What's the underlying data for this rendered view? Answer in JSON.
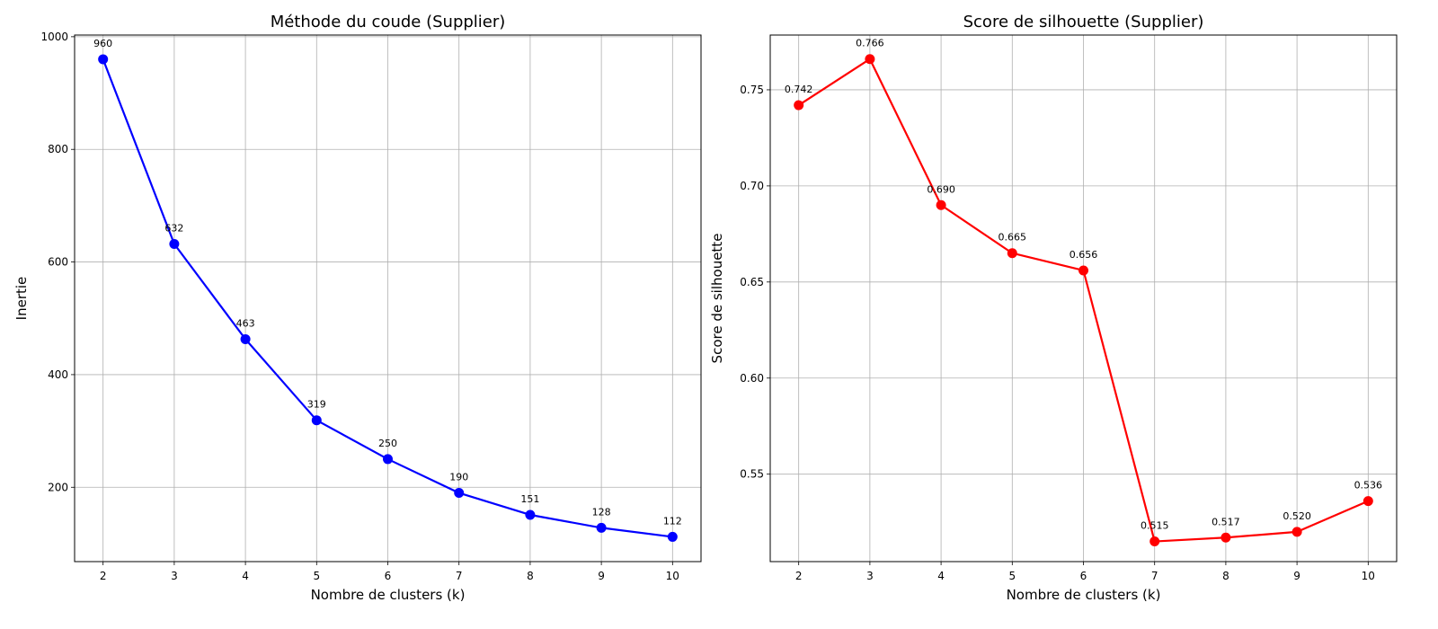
{
  "chart_data": [
    {
      "type": "line",
      "title": "Méthode du coude (Supplier)",
      "xlabel": "Nombre de clusters (k)",
      "ylabel": "Inertie",
      "x": [
        2,
        3,
        4,
        5,
        6,
        7,
        8,
        9,
        10
      ],
      "values": [
        960,
        632,
        463,
        319,
        250,
        190,
        151,
        128,
        112
      ],
      "data_labels": [
        "960",
        "632",
        "463",
        "319",
        "250",
        "190",
        "151",
        "128",
        "112"
      ],
      "x_ticks": [
        "2",
        "3",
        "4",
        "5",
        "6",
        "7",
        "8",
        "9",
        "10"
      ],
      "y_ticks": [
        200,
        400,
        600,
        800,
        1000
      ],
      "y_tick_labels": [
        "200",
        "400",
        "600",
        "800",
        "1000"
      ],
      "xlim": [
        1.6,
        10.4
      ],
      "ylim": [
        68,
        1003
      ],
      "color": "#0000ff",
      "marker": "circle",
      "grid": true
    },
    {
      "type": "line",
      "title": "Score de silhouette (Supplier)",
      "xlabel": "Nombre de clusters (k)",
      "ylabel": "Score de silhouette",
      "x": [
        2,
        3,
        4,
        5,
        6,
        7,
        8,
        9,
        10
      ],
      "values": [
        0.742,
        0.766,
        0.69,
        0.665,
        0.656,
        0.515,
        0.517,
        0.52,
        0.536
      ],
      "data_labels": [
        "0.742",
        "0.766",
        "0.690",
        "0.665",
        "0.656",
        "0.515",
        "0.517",
        "0.520",
        "0.536"
      ],
      "x_ticks": [
        "2",
        "3",
        "4",
        "5",
        "6",
        "7",
        "8",
        "9",
        "10"
      ],
      "y_ticks": [
        0.55,
        0.6,
        0.65,
        0.7,
        0.75
      ],
      "y_tick_labels": [
        "0.55",
        "0.60",
        "0.65",
        "0.70",
        "0.75"
      ],
      "xlim": [
        1.6,
        10.4
      ],
      "ylim": [
        0.5045,
        0.7785
      ],
      "color": "#ff0000",
      "marker": "circle",
      "grid": true
    }
  ]
}
